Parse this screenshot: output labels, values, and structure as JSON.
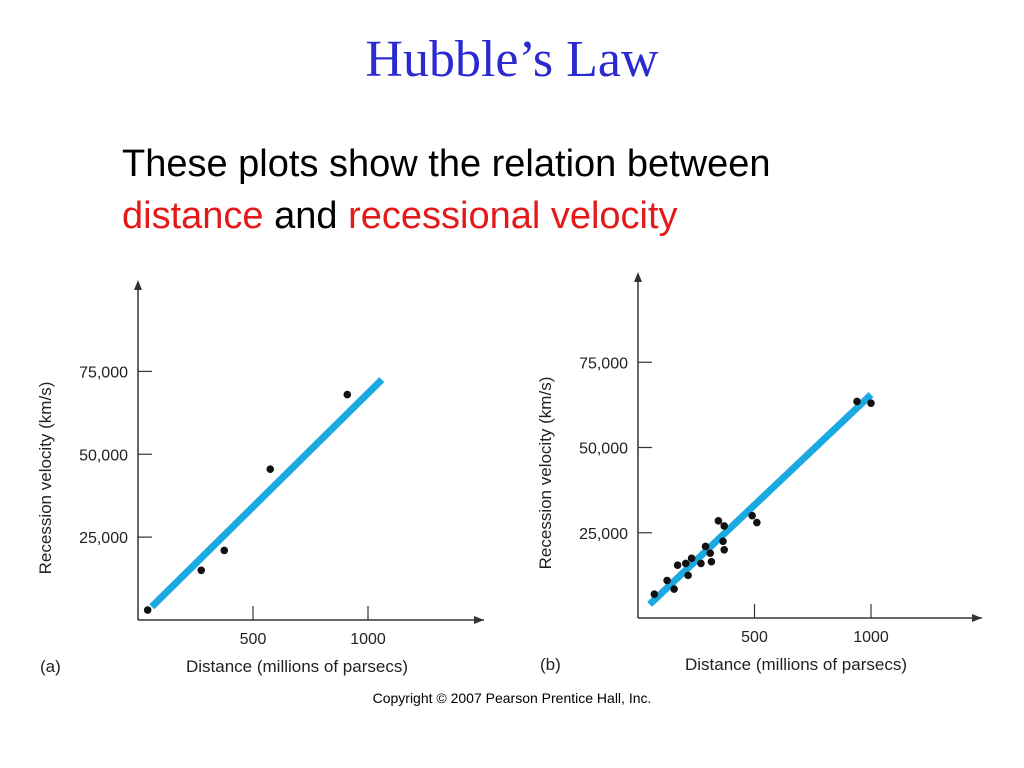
{
  "slide": {
    "title": "Hubble’s Law",
    "subtitle_line1": "These plots show the relation between",
    "subtitle_word1": "distance",
    "subtitle_and": " and ",
    "subtitle_word2": "recessional velocity",
    "copyright": "Copyright © 2007 Pearson Prentice Hall, Inc."
  },
  "colors": {
    "title": "#2a2ad0",
    "highlight": "#e41a1a",
    "fit_line": "#1ba9e1",
    "points": "#111111"
  },
  "chart_data": [
    {
      "type": "scatter",
      "panel_label": "(a)",
      "xlabel": "Distance (millions of parsecs)",
      "ylabel": "Recession velocity (km/s)",
      "xticks": [
        500,
        1000
      ],
      "yticks": [
        25000,
        50000,
        75000
      ],
      "ytick_labels": [
        "25,000",
        "50,000",
        "75,000"
      ],
      "xlim": [
        0,
        1450
      ],
      "ylim": [
        0,
        95000
      ],
      "points": [
        [
          42,
          3000
        ],
        [
          275,
          15000
        ],
        [
          375,
          21000
        ],
        [
          575,
          45500
        ],
        [
          910,
          68000
        ]
      ],
      "fit_line": [
        [
          60,
          4000
        ],
        [
          1060,
          72500
        ]
      ],
      "grid": false
    },
    {
      "type": "scatter",
      "panel_label": "(b)",
      "xlabel": "Distance (millions of parsecs)",
      "ylabel": "Recession velocity (km/s)",
      "xticks": [
        500,
        1000
      ],
      "yticks": [
        25000,
        50000,
        75000
      ],
      "ytick_labels": [
        "25,000",
        "50,000",
        "75,000"
      ],
      "xlim": [
        0,
        1450
      ],
      "ylim": [
        0,
        97000
      ],
      "points": [
        [
          70,
          7000
        ],
        [
          125,
          11000
        ],
        [
          155,
          8500
        ],
        [
          170,
          15500
        ],
        [
          205,
          16000
        ],
        [
          215,
          12500
        ],
        [
          230,
          17500
        ],
        [
          270,
          16000
        ],
        [
          290,
          21000
        ],
        [
          310,
          19000
        ],
        [
          315,
          16500
        ],
        [
          345,
          28500
        ],
        [
          365,
          22500
        ],
        [
          370,
          20000
        ],
        [
          370,
          27000
        ],
        [
          490,
          30000
        ],
        [
          510,
          28000
        ],
        [
          940,
          63500
        ],
        [
          1000,
          63000
        ]
      ],
      "fit_line": [
        [
          50,
          4000
        ],
        [
          1000,
          65500
        ]
      ],
      "grid": false
    }
  ]
}
